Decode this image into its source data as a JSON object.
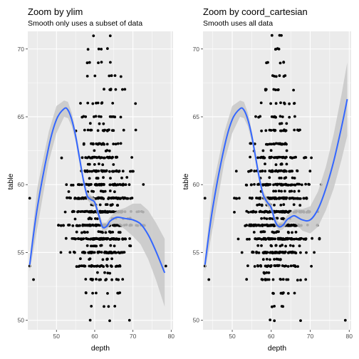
{
  "chart_data": [
    {
      "type": "scatter",
      "title": "Zoom by ylim",
      "subtitle": "Smooth only uses a subset of data",
      "xlabel": "depth",
      "ylabel": "table",
      "xlim": [
        42.5,
        80.5
      ],
      "ylim": [
        49.3,
        71.3
      ],
      "x_ticks": [
        50,
        60,
        70,
        80
      ],
      "y_ticks": [
        50,
        55,
        60,
        65,
        70
      ],
      "grid": true,
      "smooth": {
        "color": "#3366ff",
        "x": [
          43,
          45,
          48,
          50,
          52,
          53,
          54,
          55,
          56,
          57,
          58,
          59,
          60,
          61,
          62,
          63,
          64,
          65,
          66,
          68,
          70,
          72,
          74,
          76,
          78.3
        ],
        "y": [
          54.1,
          58.3,
          62.8,
          64.8,
          65.6,
          65.5,
          64.8,
          63.6,
          62.0,
          60.4,
          59.2,
          58.9,
          58.7,
          57.8,
          56.9,
          56.9,
          57.3,
          57.5,
          57.6,
          57.5,
          57.4,
          57.1,
          56.3,
          55.1,
          53.5
        ],
        "se_band": [
          0.5,
          1.5,
          1.1,
          1.0,
          0.6,
          0.6,
          0.5,
          0.4,
          0.4,
          0.3,
          0.3,
          0.3,
          0.3,
          0.3,
          0.3,
          0.3,
          0.3,
          0.4,
          0.5,
          0.8,
          1.2,
          1.5,
          1.8,
          2.1,
          2.5
        ]
      },
      "outliers": [
        [
          43,
          59
        ],
        [
          43,
          54
        ],
        [
          44,
          53
        ],
        [
          78.6,
          54
        ]
      ]
    },
    {
      "type": "scatter",
      "title": "Zoom by coord_cartesian",
      "subtitle": "Smooth uses all data",
      "xlabel": "depth",
      "ylabel": "table",
      "xlim": [
        42.5,
        80.5
      ],
      "ylim": [
        49.3,
        71.3
      ],
      "x_ticks": [
        50,
        60,
        70,
        80
      ],
      "y_ticks": [
        50,
        55,
        60,
        65,
        70
      ],
      "grid": true,
      "smooth": {
        "color": "#3366ff",
        "x": [
          43,
          45,
          48,
          50,
          52,
          53,
          54,
          55,
          56,
          57,
          58,
          59,
          60,
          61,
          62,
          63,
          64,
          65,
          66,
          68,
          70,
          72,
          74,
          76,
          78,
          79.5
        ],
        "y": [
          54.1,
          58.3,
          62.8,
          64.8,
          65.6,
          65.5,
          64.8,
          63.6,
          62.0,
          60.4,
          59.2,
          58.7,
          58.3,
          57.3,
          56.9,
          57.0,
          57.4,
          57.6,
          57.7,
          57.4,
          57.4,
          58.2,
          59.7,
          61.7,
          64.2,
          66.3
        ],
        "se_band": [
          0.5,
          1.5,
          1.1,
          1.0,
          0.6,
          0.6,
          0.5,
          0.4,
          0.4,
          0.3,
          0.3,
          0.3,
          0.3,
          0.3,
          0.3,
          0.3,
          0.3,
          0.4,
          0.5,
          0.8,
          1.0,
          1.3,
          1.6,
          2.0,
          2.4,
          2.7
        ]
      },
      "outliers": [
        [
          43,
          59
        ],
        [
          43,
          54
        ],
        [
          44,
          53
        ],
        [
          79,
          50
        ],
        [
          62.6,
          71
        ]
      ]
    }
  ],
  "point_color": "#000000",
  "band_color": "#c8c8c8",
  "panel_bg": "#ebebeb",
  "grid_color": "#ffffff"
}
